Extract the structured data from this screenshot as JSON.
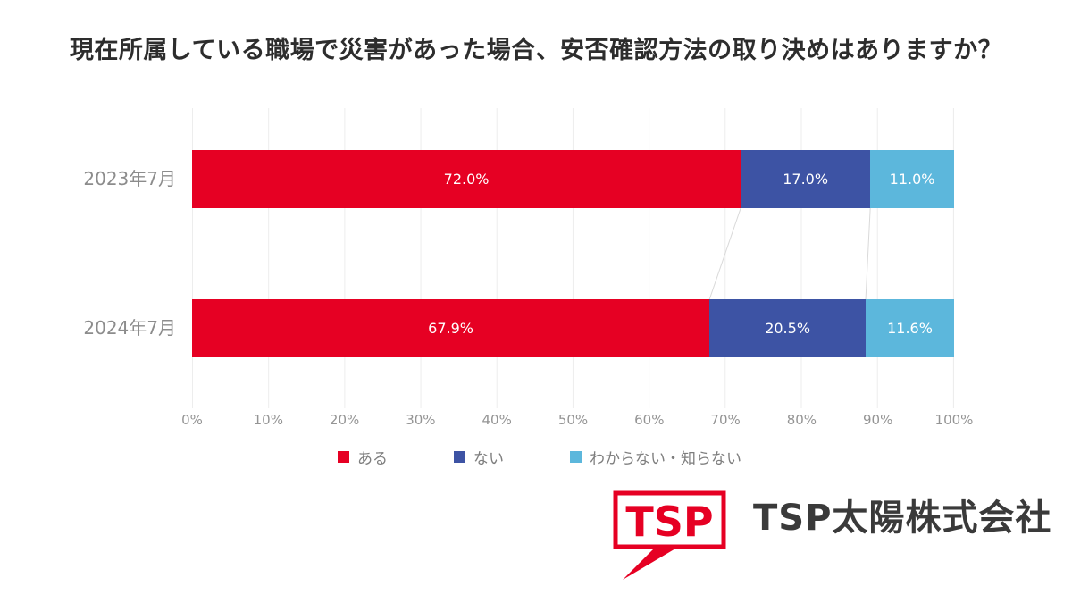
{
  "title": "現在所属している職場で災害があった場合、安否確認方法の取り決めはありますか？",
  "chart_data": {
    "type": "bar",
    "orientation": "horizontal-stacked",
    "categories": [
      "2023年7月",
      "2024年7月"
    ],
    "series": [
      {
        "name": "ある",
        "color": "#e60023",
        "values": [
          72.0,
          67.9
        ]
      },
      {
        "name": "ない",
        "color": "#3d53a4",
        "values": [
          17.0,
          20.5
        ]
      },
      {
        "name": "わからない・知らない",
        "color": "#5cb7dc",
        "values": [
          11.0,
          11.6
        ]
      }
    ],
    "value_labels": [
      [
        "72.0%",
        "17.0%",
        "11.0%"
      ],
      [
        "67.9%",
        "20.5%",
        "11.6%"
      ]
    ],
    "xticks": [
      "0%",
      "10%",
      "20%",
      "30%",
      "40%",
      "50%",
      "60%",
      "70%",
      "80%",
      "90%",
      "100%"
    ],
    "xlim": [
      0,
      100
    ],
    "grid": "vertical",
    "legend_position": "bottom",
    "value_label_color": "#ffffff",
    "axis_text_color": "#949494",
    "category_text_color": "#8c8c8c"
  },
  "logo": {
    "badge_text": "TSP",
    "company_name": "TSP太陽株式会社",
    "brand_color": "#e60023",
    "text_color": "#3a3a3a"
  }
}
